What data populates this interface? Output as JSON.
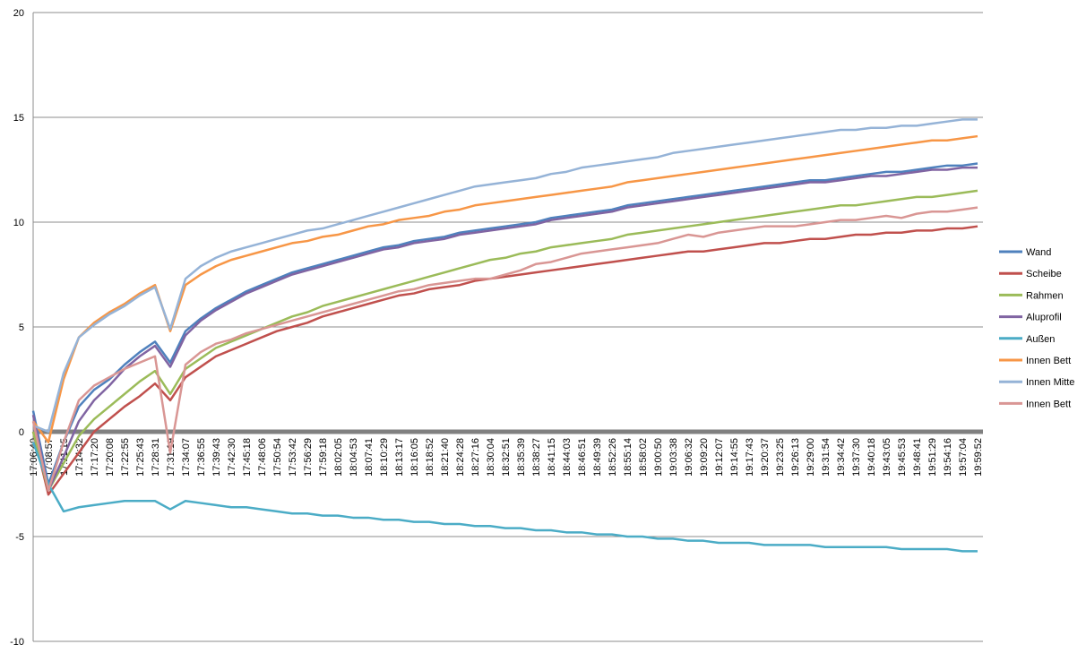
{
  "chart_data": {
    "type": "line",
    "categories": [
      "17:06:40",
      "17:08:57",
      "17:11:15",
      "17:14:32",
      "17:17:20",
      "17:20:08",
      "17:22:55",
      "17:25:43",
      "17:28:31",
      "17:31:19",
      "17:34:07",
      "17:36:55",
      "17:39:43",
      "17:42:30",
      "17:45:18",
      "17:48:06",
      "17:50:54",
      "17:53:42",
      "17:56:29",
      "17:59:18",
      "18:02:05",
      "18:04:53",
      "18:07:41",
      "18:10:29",
      "18:13:17",
      "18:16:05",
      "18:18:52",
      "18:21:40",
      "18:24:28",
      "18:27:16",
      "18:30:04",
      "18:32:51",
      "18:35:39",
      "18:38:27",
      "18:41:15",
      "18:44:03",
      "18:46:51",
      "18:49:39",
      "18:52:26",
      "18:55:14",
      "18:58:02",
      "19:00:50",
      "19:03:38",
      "19:06:32",
      "19:09:20",
      "19:12:07",
      "19:14:55",
      "19:17:43",
      "19:20:37",
      "19:23:25",
      "19:26:13",
      "19:29:00",
      "19:31:54",
      "19:34:42",
      "19:37:30",
      "19:40:18",
      "19:43:05",
      "19:45:53",
      "19:48:41",
      "19:51:29",
      "19:54:16",
      "19:57:04",
      "19:59:52"
    ],
    "series": [
      {
        "name": "Wand",
        "color": "#4f81bd",
        "values": [
          1.0,
          -2.5,
          -0.5,
          1.2,
          2.0,
          2.5,
          3.2,
          3.8,
          4.3,
          3.3,
          4.8,
          5.4,
          5.9,
          6.3,
          6.7,
          7.0,
          7.3,
          7.6,
          7.8,
          8.0,
          8.2,
          8.4,
          8.6,
          8.8,
          8.9,
          9.1,
          9.2,
          9.3,
          9.5,
          9.6,
          9.7,
          9.8,
          9.9,
          10.0,
          10.2,
          10.3,
          10.4,
          10.5,
          10.6,
          10.8,
          10.9,
          11.0,
          11.1,
          11.2,
          11.3,
          11.4,
          11.5,
          11.6,
          11.7,
          11.8,
          11.9,
          12.0,
          12.0,
          12.1,
          12.2,
          12.3,
          12.4,
          12.4,
          12.5,
          12.6,
          12.7,
          12.7,
          12.8
        ]
      },
      {
        "name": "Scheibe",
        "color": "#c0504d",
        "values": [
          0.0,
          -3.0,
          -2.0,
          -1.0,
          0.0,
          0.6,
          1.2,
          1.7,
          2.3,
          1.5,
          2.6,
          3.1,
          3.6,
          3.9,
          4.2,
          4.5,
          4.8,
          5.0,
          5.2,
          5.5,
          5.7,
          5.9,
          6.1,
          6.3,
          6.5,
          6.6,
          6.8,
          6.9,
          7.0,
          7.2,
          7.3,
          7.4,
          7.5,
          7.6,
          7.7,
          7.8,
          7.9,
          8.0,
          8.1,
          8.2,
          8.3,
          8.4,
          8.5,
          8.6,
          8.6,
          8.7,
          8.8,
          8.9,
          9.0,
          9.0,
          9.1,
          9.2,
          9.2,
          9.3,
          9.4,
          9.4,
          9.5,
          9.5,
          9.6,
          9.6,
          9.7,
          9.7,
          9.8
        ]
      },
      {
        "name": "Rahmen",
        "color": "#9bbb59",
        "values": [
          0.0,
          -2.8,
          -1.5,
          -0.2,
          0.6,
          1.2,
          1.8,
          2.4,
          2.9,
          1.8,
          3.0,
          3.5,
          4.0,
          4.3,
          4.6,
          4.9,
          5.2,
          5.5,
          5.7,
          6.0,
          6.2,
          6.4,
          6.6,
          6.8,
          7.0,
          7.2,
          7.4,
          7.6,
          7.8,
          8.0,
          8.2,
          8.3,
          8.5,
          8.6,
          8.8,
          8.9,
          9.0,
          9.1,
          9.2,
          9.4,
          9.5,
          9.6,
          9.7,
          9.8,
          9.9,
          10.0,
          10.1,
          10.2,
          10.3,
          10.4,
          10.5,
          10.6,
          10.7,
          10.8,
          10.8,
          10.9,
          11.0,
          11.1,
          11.2,
          11.2,
          11.3,
          11.4,
          11.5
        ]
      },
      {
        "name": "Aluprofil",
        "color": "#8064a2",
        "values": [
          0.8,
          -2.8,
          -1.2,
          0.5,
          1.5,
          2.2,
          3.0,
          3.6,
          4.1,
          3.1,
          4.6,
          5.3,
          5.8,
          6.2,
          6.6,
          6.9,
          7.2,
          7.5,
          7.7,
          7.9,
          8.1,
          8.3,
          8.5,
          8.7,
          8.8,
          9.0,
          9.1,
          9.2,
          9.4,
          9.5,
          9.6,
          9.7,
          9.8,
          9.9,
          10.1,
          10.2,
          10.3,
          10.4,
          10.5,
          10.7,
          10.8,
          10.9,
          11.0,
          11.1,
          11.2,
          11.3,
          11.4,
          11.5,
          11.6,
          11.7,
          11.8,
          11.9,
          11.9,
          12.0,
          12.1,
          12.2,
          12.2,
          12.3,
          12.4,
          12.5,
          12.5,
          12.6,
          12.6
        ]
      },
      {
        "name": "Außen",
        "color": "#4bacc6",
        "values": [
          -0.5,
          -2.5,
          -3.8,
          -3.6,
          -3.5,
          -3.4,
          -3.3,
          -3.3,
          -3.3,
          -3.7,
          -3.3,
          -3.4,
          -3.5,
          -3.6,
          -3.6,
          -3.7,
          -3.8,
          -3.9,
          -3.9,
          -4.0,
          -4.0,
          -4.1,
          -4.1,
          -4.2,
          -4.2,
          -4.3,
          -4.3,
          -4.4,
          -4.4,
          -4.5,
          -4.5,
          -4.6,
          -4.6,
          -4.7,
          -4.7,
          -4.8,
          -4.8,
          -4.9,
          -4.9,
          -5.0,
          -5.0,
          -5.1,
          -5.1,
          -5.2,
          -5.2,
          -5.3,
          -5.3,
          -5.3,
          -5.4,
          -5.4,
          -5.4,
          -5.4,
          -5.5,
          -5.5,
          -5.5,
          -5.5,
          -5.5,
          -5.6,
          -5.6,
          -5.6,
          -5.6,
          -5.7,
          -5.7
        ]
      },
      {
        "name": "Innen Bett",
        "color": "#f79646",
        "values": [
          0.5,
          -0.5,
          2.5,
          4.5,
          5.2,
          5.7,
          6.1,
          6.6,
          7.0,
          4.8,
          7.0,
          7.5,
          7.9,
          8.2,
          8.4,
          8.6,
          8.8,
          9.0,
          9.1,
          9.3,
          9.4,
          9.6,
          9.8,
          9.9,
          10.1,
          10.2,
          10.3,
          10.5,
          10.6,
          10.8,
          10.9,
          11.0,
          11.1,
          11.2,
          11.3,
          11.4,
          11.5,
          11.6,
          11.7,
          11.9,
          12.0,
          12.1,
          12.2,
          12.3,
          12.4,
          12.5,
          12.6,
          12.7,
          12.8,
          12.9,
          13.0,
          13.1,
          13.2,
          13.3,
          13.4,
          13.5,
          13.6,
          13.7,
          13.8,
          13.9,
          13.9,
          14.0,
          14.1
        ]
      },
      {
        "name": "Innen Mitte",
        "color": "#95b3d7",
        "values": [
          0.3,
          0.0,
          2.8,
          4.5,
          5.1,
          5.6,
          6.0,
          6.5,
          6.9,
          4.9,
          7.3,
          7.9,
          8.3,
          8.6,
          8.8,
          9.0,
          9.2,
          9.4,
          9.6,
          9.7,
          9.9,
          10.1,
          10.3,
          10.5,
          10.7,
          10.9,
          11.1,
          11.3,
          11.5,
          11.7,
          11.8,
          11.9,
          12.0,
          12.1,
          12.3,
          12.4,
          12.6,
          12.7,
          12.8,
          12.9,
          13.0,
          13.1,
          13.3,
          13.4,
          13.5,
          13.6,
          13.7,
          13.8,
          13.9,
          14.0,
          14.1,
          14.2,
          14.3,
          14.4,
          14.4,
          14.5,
          14.5,
          14.6,
          14.6,
          14.7,
          14.8,
          14.9,
          14.9
        ]
      },
      {
        "name": "Innen Bett",
        "color": "#d99694",
        "values": [
          0.5,
          -2.8,
          -0.5,
          1.5,
          2.2,
          2.6,
          3.0,
          3.3,
          3.6,
          -1.0,
          3.2,
          3.8,
          4.2,
          4.4,
          4.7,
          4.9,
          5.1,
          5.3,
          5.5,
          5.7,
          5.9,
          6.1,
          6.3,
          6.5,
          6.7,
          6.8,
          7.0,
          7.1,
          7.2,
          7.3,
          7.3,
          7.5,
          7.7,
          8.0,
          8.1,
          8.3,
          8.5,
          8.6,
          8.7,
          8.8,
          8.9,
          9.0,
          9.2,
          9.4,
          9.3,
          9.5,
          9.6,
          9.7,
          9.8,
          9.8,
          9.8,
          9.9,
          10.0,
          10.1,
          10.1,
          10.2,
          10.3,
          10.2,
          10.4,
          10.5,
          10.5,
          10.6,
          10.7
        ]
      }
    ],
    "ylim": [
      -10,
      20
    ],
    "yticks": [
      -10,
      -5,
      0,
      5,
      10,
      15,
      20
    ],
    "grid": true,
    "legend": "right"
  }
}
